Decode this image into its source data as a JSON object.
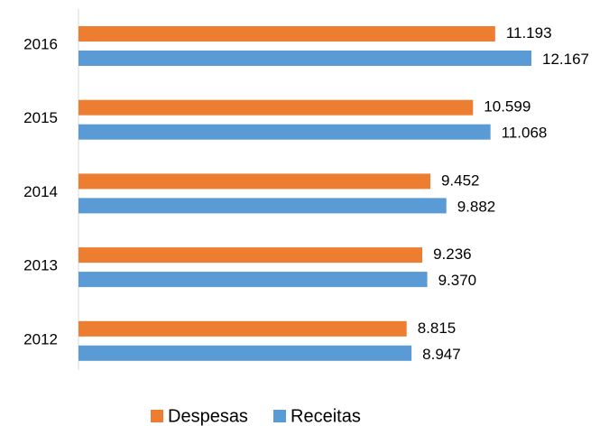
{
  "chart_data": {
    "type": "bar",
    "orientation": "horizontal",
    "categories": [
      "2016",
      "2015",
      "2014",
      "2013",
      "2012"
    ],
    "series": [
      {
        "name": "Despesas",
        "color": "#ed7d31",
        "values": [
          11193,
          10599,
          9452,
          9236,
          8815
        ],
        "value_labels": [
          "11.193",
          "10.599",
          "9.452",
          "9.236",
          "8.815"
        ]
      },
      {
        "name": "Receitas",
        "color": "#5b9bd5",
        "values": [
          12167,
          11068,
          9882,
          9370,
          8947
        ],
        "value_labels": [
          "12.167",
          "11.068",
          "9.882",
          "9.370",
          "8.947"
        ]
      }
    ],
    "legend": "bottom"
  }
}
